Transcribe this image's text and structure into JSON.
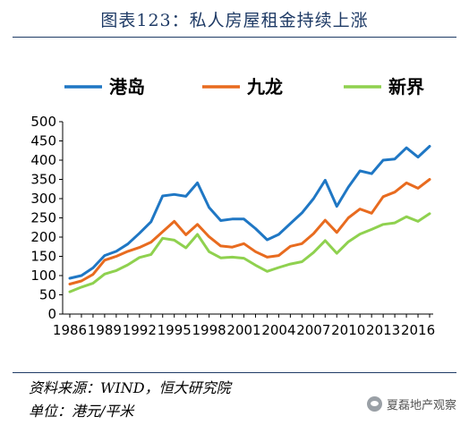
{
  "header": {
    "title": "图表123：私人房屋租金持续上涨"
  },
  "footer": {
    "source": "资料来源：WIND，恒大研究院",
    "unit": "单位：港元/平米"
  },
  "watermark": {
    "text": "夏磊地产观察",
    "icon": "wechat-icon"
  },
  "chart_data": {
    "type": "line",
    "title": "",
    "xlabel": "",
    "ylabel": "",
    "ylim": [
      0,
      500
    ],
    "yticks": [
      0,
      50,
      100,
      150,
      200,
      250,
      300,
      350,
      400,
      450,
      500
    ],
    "x": [
      1986,
      1987,
      1988,
      1989,
      1990,
      1991,
      1992,
      1993,
      1994,
      1995,
      1996,
      1997,
      1998,
      1999,
      2000,
      2001,
      2002,
      2003,
      2004,
      2005,
      2006,
      2007,
      2008,
      2009,
      2010,
      2011,
      2012,
      2013,
      2014,
      2015,
      2016,
      2017
    ],
    "xtick_labels": [
      "1986",
      "1989",
      "1992",
      "1995",
      "1998",
      "2001",
      "2004",
      "2007",
      "2010",
      "2013",
      "2016"
    ],
    "xtick_values": [
      1986,
      1989,
      1992,
      1995,
      1998,
      2001,
      2004,
      2007,
      2010,
      2013,
      2016
    ],
    "grid": false,
    "legend_position": "top",
    "series": [
      {
        "name": "港岛",
        "color": "#1f77c4",
        "values": [
          93,
          100,
          120,
          152,
          163,
          182,
          210,
          240,
          307,
          311,
          306,
          341,
          277,
          243,
          247,
          247,
          222,
          193,
          207,
          235,
          263,
          300,
          348,
          280,
          330,
          372,
          365,
          400,
          403,
          432,
          408,
          436
        ]
      },
      {
        "name": "九龙",
        "color": "#e86b1f",
        "values": [
          78,
          86,
          103,
          140,
          150,
          163,
          173,
          187,
          214,
          241,
          206,
          233,
          201,
          177,
          174,
          183,
          162,
          148,
          152,
          176,
          183,
          209,
          244,
          212,
          250,
          273,
          262,
          305,
          317,
          341,
          327,
          350
        ]
      },
      {
        "name": "新界",
        "color": "#8fd14f",
        "values": [
          58,
          70,
          80,
          104,
          113,
          128,
          147,
          155,
          197,
          192,
          172,
          207,
          162,
          146,
          148,
          145,
          127,
          111,
          121,
          130,
          136,
          160,
          191,
          158,
          188,
          208,
          220,
          233,
          237,
          253,
          241,
          261
        ]
      }
    ]
  }
}
